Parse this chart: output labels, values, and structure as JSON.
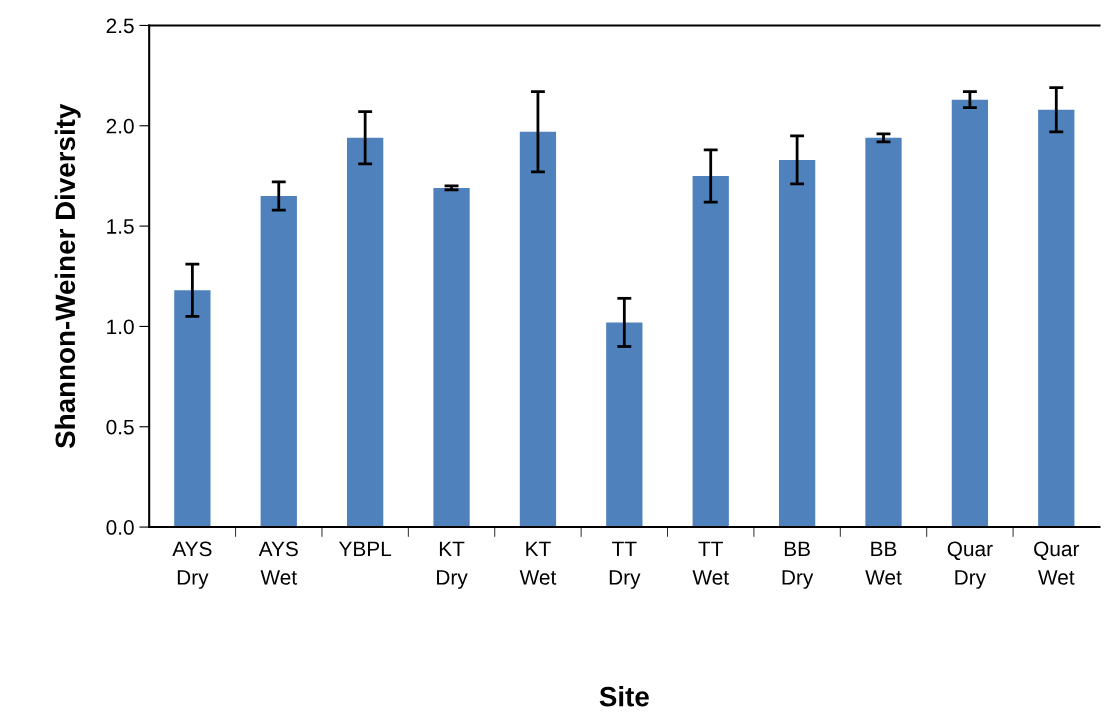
{
  "chart_data": {
    "type": "bar",
    "xlabel": "Site",
    "ylabel": "Shannon-Weiner Diversity",
    "categories": [
      "AYS\nDry",
      "AYS\nWet",
      "YBPL",
      "KT\nDry",
      "KT\nWet",
      "TT\nDry",
      "TT\nWet",
      "BB\nDry",
      "BB\nWet",
      "Quar\nDry",
      "Quar\nWet"
    ],
    "values": [
      1.18,
      1.65,
      1.94,
      1.69,
      1.97,
      1.02,
      1.75,
      1.83,
      1.94,
      2.13,
      2.08
    ],
    "errors": [
      0.13,
      0.07,
      0.13,
      0.01,
      0.2,
      0.12,
      0.13,
      0.12,
      0.02,
      0.04,
      0.11
    ],
    "color": "#4f81bd",
    "ylim": [
      0,
      2.5
    ],
    "yticks": [
      {
        "value": 0,
        "label": "0.0"
      },
      {
        "value": 0.5,
        "label": "0.5"
      },
      {
        "value": 1,
        "label": "1.0"
      },
      {
        "value": 1.5,
        "label": "1.5"
      },
      {
        "value": 2,
        "label": "2.0"
      },
      {
        "value": 2.5,
        "label": "2.5"
      }
    ],
    "grid": false,
    "legend": false
  }
}
